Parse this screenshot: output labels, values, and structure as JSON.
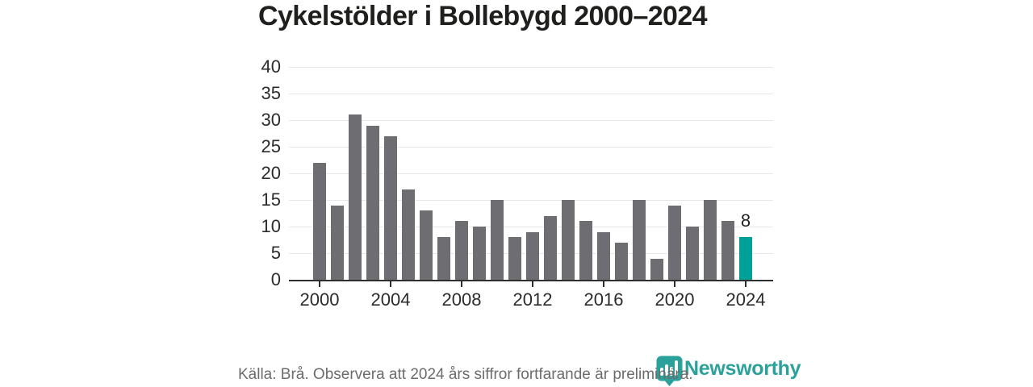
{
  "title": "Cykelstölder i Bollebygd 2000–2024",
  "source_note": "Källa: Brå. Observera att 2024 års siffror fortfarande är preliminära.",
  "branding": {
    "logo_text": "Newsworthy",
    "logo_icon": "map-marker-bar-chart-icon"
  },
  "colors": {
    "title": "#1f1f1d",
    "bar": "#6d6d72",
    "highlight": "#00a099",
    "brand": "#2aa19a",
    "grid": "#e8e8e8",
    "axis": "#2f2f2f",
    "tick": "#2b2b2b",
    "source": "#6c6c6c"
  },
  "chart_data": {
    "type": "bar",
    "title": "Cykelstölder i Bollebygd 2000–2024",
    "xlabel": "",
    "ylabel": "",
    "x": [
      2000,
      2001,
      2002,
      2003,
      2004,
      2005,
      2006,
      2007,
      2008,
      2009,
      2010,
      2011,
      2012,
      2013,
      2014,
      2015,
      2016,
      2017,
      2018,
      2019,
      2020,
      2021,
      2022,
      2023,
      2024
    ],
    "values": [
      22,
      14,
      31,
      29,
      27,
      17,
      13,
      8,
      11,
      10,
      15,
      8,
      9,
      12,
      15,
      11,
      9,
      7,
      15,
      4,
      14,
      10,
      15,
      11,
      8
    ],
    "highlight_index": 24,
    "highlight_label": "8",
    "xticks": [
      2000,
      2004,
      2008,
      2012,
      2016,
      2020,
      2024
    ],
    "yticks": [
      0,
      5,
      10,
      15,
      20,
      25,
      30,
      35,
      40
    ],
    "ylim": [
      0,
      40
    ],
    "grid": true,
    "legend": false
  }
}
